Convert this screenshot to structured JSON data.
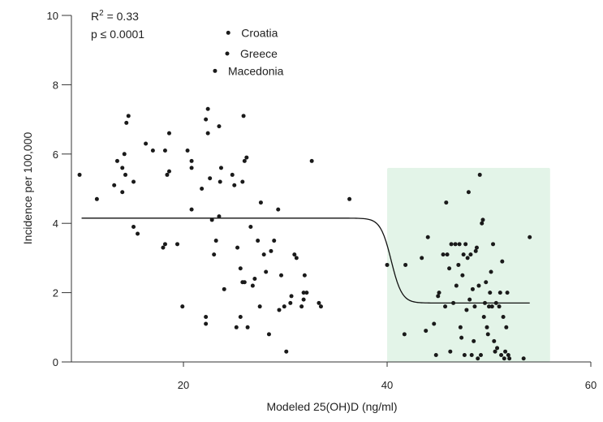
{
  "chart_data": {
    "type": "scatter",
    "title": "",
    "xlabel": "Modeled 25(OH)D (ng/ml)",
    "ylabel": "Incidence per 100,000",
    "xlim": [
      9,
      60
    ],
    "ylim": [
      0,
      10
    ],
    "x_ticks": [
      20,
      40,
      60
    ],
    "y_ticks": [
      0,
      2,
      4,
      6,
      8,
      10
    ],
    "x_tick_labels": [
      "20",
      "40",
      "60"
    ],
    "y_tick_labels": [
      "0",
      "2",
      "4",
      "6",
      "8",
      "10"
    ],
    "stats": {
      "r2_prefix": "R",
      "r2_sup": "2",
      "r2_value": " = 0.33",
      "p_text": "p ≤ 0.0001"
    },
    "highlight_region": {
      "x": [
        40,
        56
      ],
      "y": [
        0,
        5.6
      ],
      "color": "#e3f4e8"
    },
    "fit_curve": {
      "type": "sigmoid",
      "x_range": [
        10,
        54
      ],
      "upper": 4.15,
      "lower": 1.7,
      "midpoint": 40.4,
      "slope": 1.9
    },
    "labeled_points": [
      {
        "label": "Croatia",
        "x": 24.4,
        "y": 9.5
      },
      {
        "label": "Greece",
        "x": 24.3,
        "y": 8.9
      },
      {
        "label": "Macedonia",
        "x": 23.1,
        "y": 8.4
      }
    ],
    "series": [
      {
        "name": "countries",
        "points": [
          [
            9.8,
            5.4
          ],
          [
            11.5,
            4.7
          ],
          [
            13.2,
            5.1
          ],
          [
            13.5,
            5.8
          ],
          [
            14.0,
            4.9
          ],
          [
            14.2,
            6.0
          ],
          [
            14.4,
            6.9
          ],
          [
            14.6,
            7.1
          ],
          [
            14.3,
            5.4
          ],
          [
            14.0,
            5.6
          ],
          [
            15.1,
            5.2
          ],
          [
            15.1,
            3.9
          ],
          [
            15.5,
            3.7
          ],
          [
            16.3,
            6.3
          ],
          [
            17.0,
            6.1
          ],
          [
            18.0,
            3.3
          ],
          [
            18.2,
            3.4
          ],
          [
            18.4,
            5.4
          ],
          [
            18.6,
            5.5
          ],
          [
            18.2,
            6.1
          ],
          [
            18.6,
            6.6
          ],
          [
            19.4,
            3.4
          ],
          [
            19.9,
            1.6
          ],
          [
            20.4,
            6.1
          ],
          [
            20.8,
            5.8
          ],
          [
            20.8,
            5.6
          ],
          [
            20.8,
            4.4
          ],
          [
            21.8,
            5.0
          ],
          [
            22.2,
            7.0
          ],
          [
            22.2,
            1.3
          ],
          [
            22.2,
            1.1
          ],
          [
            22.4,
            7.3
          ],
          [
            22.4,
            6.6
          ],
          [
            22.6,
            5.3
          ],
          [
            22.8,
            4.1
          ],
          [
            23.0,
            3.1
          ],
          [
            23.2,
            3.5
          ],
          [
            23.5,
            6.8
          ],
          [
            23.5,
            4.2
          ],
          [
            23.7,
            5.6
          ],
          [
            23.6,
            5.2
          ],
          [
            24.0,
            2.1
          ],
          [
            24.8,
            5.4
          ],
          [
            25.0,
            5.1
          ],
          [
            25.2,
            1.0
          ],
          [
            25.3,
            3.3
          ],
          [
            25.6,
            2.7
          ],
          [
            25.6,
            1.3
          ],
          [
            25.8,
            2.3
          ],
          [
            25.8,
            5.2
          ],
          [
            25.9,
            7.1
          ],
          [
            26.0,
            2.3
          ],
          [
            26.0,
            5.8
          ],
          [
            26.2,
            5.9
          ],
          [
            26.3,
            1.0
          ],
          [
            26.6,
            3.9
          ],
          [
            26.8,
            2.2
          ],
          [
            27.0,
            2.4
          ],
          [
            27.3,
            3.5
          ],
          [
            27.5,
            1.6
          ],
          [
            27.6,
            4.6
          ],
          [
            27.9,
            3.1
          ],
          [
            28.1,
            2.6
          ],
          [
            28.4,
            0.8
          ],
          [
            28.6,
            3.2
          ],
          [
            28.9,
            3.5
          ],
          [
            29.3,
            4.4
          ],
          [
            29.4,
            1.5
          ],
          [
            29.6,
            2.5
          ],
          [
            29.9,
            1.6
          ],
          [
            30.1,
            0.3
          ],
          [
            30.5,
            1.7
          ],
          [
            30.6,
            1.9
          ],
          [
            30.9,
            3.1
          ],
          [
            31.1,
            3.0
          ],
          [
            31.6,
            1.6
          ],
          [
            31.8,
            1.8
          ],
          [
            31.8,
            2.0
          ],
          [
            31.9,
            2.5
          ],
          [
            32.1,
            2.0
          ],
          [
            32.6,
            5.8
          ],
          [
            33.3,
            1.7
          ],
          [
            33.5,
            1.6
          ],
          [
            36.3,
            4.7
          ],
          [
            40.0,
            2.8
          ],
          [
            41.7,
            0.8
          ],
          [
            41.8,
            2.8
          ],
          [
            43.4,
            3.0
          ],
          [
            43.8,
            0.9
          ],
          [
            44.0,
            3.6
          ],
          [
            44.6,
            1.1
          ],
          [
            44.8,
            0.2
          ],
          [
            45.0,
            1.9
          ],
          [
            45.1,
            2.0
          ],
          [
            45.5,
            3.1
          ],
          [
            45.7,
            1.6
          ],
          [
            45.8,
            4.6
          ],
          [
            45.9,
            3.1
          ],
          [
            46.1,
            2.7
          ],
          [
            46.2,
            0.3
          ],
          [
            46.3,
            3.4
          ],
          [
            46.5,
            1.7
          ],
          [
            46.7,
            3.4
          ],
          [
            46.8,
            2.2
          ],
          [
            47.0,
            2.8
          ],
          [
            47.1,
            3.4
          ],
          [
            47.2,
            1.0
          ],
          [
            47.3,
            0.7
          ],
          [
            47.4,
            2.5
          ],
          [
            47.5,
            3.1
          ],
          [
            47.6,
            0.2
          ],
          [
            47.7,
            3.4
          ],
          [
            47.8,
            1.5
          ],
          [
            47.9,
            3.0
          ],
          [
            48.0,
            4.9
          ],
          [
            48.1,
            1.8
          ],
          [
            48.2,
            3.1
          ],
          [
            48.3,
            0.2
          ],
          [
            48.4,
            2.1
          ],
          [
            48.5,
            0.6
          ],
          [
            48.6,
            1.6
          ],
          [
            48.7,
            3.2
          ],
          [
            48.8,
            3.3
          ],
          [
            48.9,
            0.1
          ],
          [
            49.0,
            2.2
          ],
          [
            49.1,
            5.4
          ],
          [
            49.2,
            0.2
          ],
          [
            49.3,
            4.0
          ],
          [
            49.4,
            4.1
          ],
          [
            49.5,
            1.3
          ],
          [
            49.6,
            1.7
          ],
          [
            49.7,
            2.3
          ],
          [
            49.8,
            1.0
          ],
          [
            49.9,
            0.8
          ],
          [
            50.0,
            1.6
          ],
          [
            50.1,
            2.0
          ],
          [
            50.2,
            2.6
          ],
          [
            50.3,
            1.6
          ],
          [
            50.4,
            3.4
          ],
          [
            50.5,
            0.6
          ],
          [
            50.6,
            0.3
          ],
          [
            50.7,
            1.7
          ],
          [
            50.8,
            0.4
          ],
          [
            51.0,
            1.6
          ],
          [
            51.1,
            2.0
          ],
          [
            51.2,
            0.2
          ],
          [
            51.3,
            2.9
          ],
          [
            51.4,
            1.3
          ],
          [
            51.5,
            0.1
          ],
          [
            51.6,
            0.3
          ],
          [
            51.7,
            1.0
          ],
          [
            51.8,
            2.0
          ],
          [
            51.9,
            0.2
          ],
          [
            52.0,
            0.1
          ],
          [
            53.4,
            0.1
          ],
          [
            54.0,
            3.6
          ]
        ]
      }
    ]
  }
}
